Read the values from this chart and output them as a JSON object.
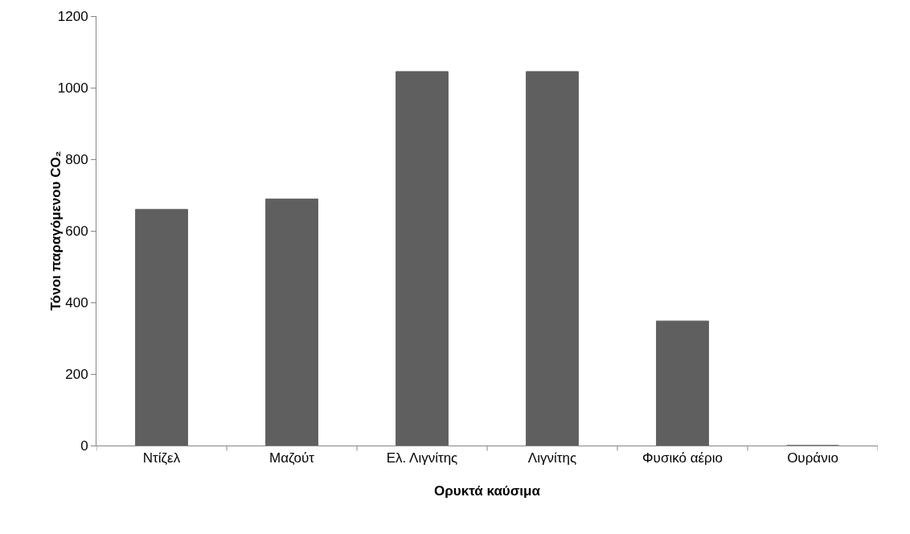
{
  "chart_data": {
    "type": "bar",
    "xlabel": "Ορυκτά καύσιμα",
    "ylabel": "Τόνοι παραγόμενου CO₂",
    "categories": [
      "Ντίζελ",
      "Μαζούτ",
      "Ελ. Λιγνίτης",
      "Λιγνίτης",
      "Φυσικό αέριο",
      "Ουράνιο"
    ],
    "values": [
      660,
      689,
      1045,
      1045,
      348,
      0
    ],
    "color": "#5f5f5f",
    "ylim": [
      0,
      1200
    ],
    "yticks": [
      0,
      200,
      400,
      600,
      800,
      1000,
      1200
    ],
    "grid": false
  }
}
